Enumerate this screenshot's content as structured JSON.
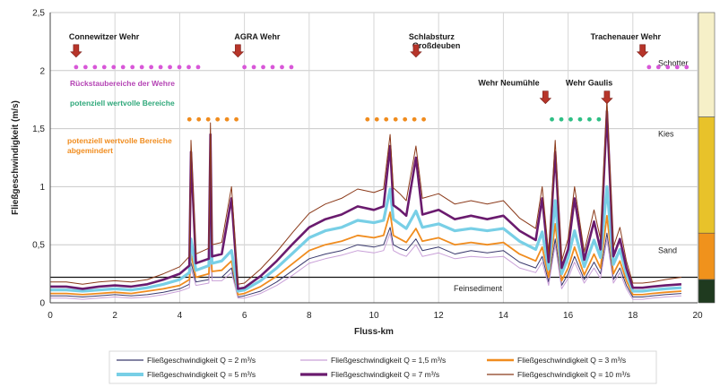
{
  "chart_data": {
    "type": "line",
    "xlabel": "Fluss-km",
    "ylabel": "Fließgeschwindigkeit (m/s)",
    "xlim": [
      0,
      20
    ],
    "ylim": [
      0,
      2.5
    ],
    "x_ticks": [
      "0",
      "2",
      "4",
      "6",
      "8",
      "10",
      "12",
      "14",
      "16",
      "18",
      "20"
    ],
    "y_ticks": [
      "0",
      "0,5",
      "1",
      "1,5",
      "2",
      "2,5"
    ],
    "x": [
      0,
      0.5,
      1,
      1.5,
      2,
      2.5,
      3,
      3.5,
      4,
      4.3,
      4.35,
      4.5,
      4.9,
      4.95,
      5.0,
      5.3,
      5.6,
      5.8,
      6.0,
      6.5,
      7,
      7.5,
      8,
      8.5,
      9,
      9.5,
      10,
      10.3,
      10.5,
      10.6,
      10.8,
      11,
      11.3,
      11.5,
      12,
      12.5,
      13,
      13.5,
      14,
      14.5,
      15,
      15.2,
      15.4,
      15.6,
      15.8,
      16,
      16.2,
      16.5,
      16.8,
      17.0,
      17.2,
      17.4,
      17.6,
      17.8,
      18,
      18.3,
      18.6,
      19,
      19.5
    ],
    "series": [
      {
        "name": "Fließgeschwindigkeit Q = 2 m³/s",
        "color": "#3b3a6e",
        "values": [
          0.06,
          0.06,
          0.05,
          0.06,
          0.07,
          0.06,
          0.07,
          0.09,
          0.12,
          0.16,
          0.35,
          0.18,
          0.2,
          0.45,
          0.22,
          0.22,
          0.3,
          0.05,
          0.06,
          0.1,
          0.18,
          0.28,
          0.38,
          0.42,
          0.45,
          0.5,
          0.48,
          0.5,
          0.65,
          0.5,
          0.47,
          0.45,
          0.55,
          0.45,
          0.48,
          0.42,
          0.45,
          0.43,
          0.45,
          0.35,
          0.3,
          0.4,
          0.18,
          0.55,
          0.15,
          0.25,
          0.4,
          0.2,
          0.35,
          0.25,
          0.6,
          0.2,
          0.3,
          0.15,
          0.05,
          0.05,
          0.06,
          0.07,
          0.08
        ]
      },
      {
        "name": "Fließgeschwindigkeit Q = 1,5 m³/s",
        "color": "#c9a0d8",
        "values": [
          0.04,
          0.04,
          0.03,
          0.04,
          0.05,
          0.04,
          0.05,
          0.07,
          0.1,
          0.13,
          0.3,
          0.15,
          0.17,
          0.4,
          0.19,
          0.19,
          0.26,
          0.04,
          0.04,
          0.08,
          0.15,
          0.24,
          0.34,
          0.38,
          0.41,
          0.45,
          0.43,
          0.45,
          0.6,
          0.45,
          0.42,
          0.4,
          0.5,
          0.4,
          0.43,
          0.38,
          0.4,
          0.39,
          0.4,
          0.3,
          0.26,
          0.35,
          0.15,
          0.5,
          0.12,
          0.21,
          0.35,
          0.17,
          0.3,
          0.21,
          0.55,
          0.17,
          0.26,
          0.12,
          0.03,
          0.03,
          0.04,
          0.05,
          0.06
        ]
      },
      {
        "name": "Fließgeschwindigkeit Q = 3 m³/s",
        "color": "#f08c1e",
        "values": [
          0.08,
          0.08,
          0.07,
          0.08,
          0.09,
          0.08,
          0.1,
          0.12,
          0.15,
          0.2,
          0.42,
          0.22,
          0.25,
          0.55,
          0.27,
          0.28,
          0.36,
          0.07,
          0.08,
          0.14,
          0.23,
          0.34,
          0.45,
          0.5,
          0.53,
          0.58,
          0.56,
          0.58,
          0.78,
          0.58,
          0.55,
          0.52,
          0.64,
          0.53,
          0.56,
          0.5,
          0.52,
          0.5,
          0.52,
          0.42,
          0.36,
          0.48,
          0.22,
          0.68,
          0.19,
          0.3,
          0.48,
          0.24,
          0.42,
          0.3,
          0.75,
          0.25,
          0.36,
          0.19,
          0.07,
          0.07,
          0.08,
          0.09,
          0.1
        ]
      },
      {
        "name": "Fließgeschwindigkeit Q = 5 m³/s",
        "color": "#78cfe6",
        "values": [
          0.11,
          0.11,
          0.1,
          0.11,
          0.12,
          0.11,
          0.13,
          0.16,
          0.2,
          0.26,
          0.55,
          0.28,
          0.32,
          0.7,
          0.34,
          0.36,
          0.45,
          0.1,
          0.11,
          0.19,
          0.3,
          0.43,
          0.56,
          0.62,
          0.65,
          0.71,
          0.69,
          0.71,
          0.98,
          0.72,
          0.68,
          0.64,
          0.79,
          0.65,
          0.68,
          0.62,
          0.64,
          0.62,
          0.64,
          0.53,
          0.46,
          0.61,
          0.29,
          0.88,
          0.25,
          0.39,
          0.62,
          0.31,
          0.54,
          0.39,
          1.0,
          0.33,
          0.46,
          0.25,
          0.1,
          0.1,
          0.11,
          0.12,
          0.13
        ]
      },
      {
        "name": "Fließgeschwindigkeit Q = 7 m³/s",
        "color": "#6a1b6e",
        "values": [
          0.14,
          0.14,
          0.12,
          0.14,
          0.15,
          0.14,
          0.16,
          0.2,
          0.25,
          0.32,
          1.3,
          0.34,
          0.38,
          1.45,
          0.4,
          0.42,
          0.9,
          0.12,
          0.13,
          0.23,
          0.36,
          0.51,
          0.65,
          0.72,
          0.76,
          0.83,
          0.8,
          0.83,
          1.35,
          0.84,
          0.8,
          0.75,
          1.25,
          0.76,
          0.8,
          0.72,
          0.75,
          0.72,
          0.75,
          0.62,
          0.54,
          0.9,
          0.35,
          1.3,
          0.3,
          0.46,
          0.9,
          0.37,
          0.7,
          0.46,
          1.65,
          0.4,
          0.55,
          0.3,
          0.13,
          0.13,
          0.14,
          0.15,
          0.16
        ]
      },
      {
        "name": "Fließgeschwindigkeit Q = 10 m³/s",
        "color": "#8b3a1a",
        "values": [
          0.18,
          0.18,
          0.16,
          0.18,
          0.19,
          0.18,
          0.2,
          0.25,
          0.31,
          0.4,
          1.4,
          0.42,
          0.47,
          1.55,
          0.5,
          0.52,
          1.0,
          0.16,
          0.17,
          0.29,
          0.44,
          0.61,
          0.77,
          0.85,
          0.9,
          0.98,
          0.95,
          0.98,
          1.45,
          0.99,
          0.94,
          0.88,
          1.35,
          0.9,
          0.94,
          0.85,
          0.88,
          0.85,
          0.88,
          0.73,
          0.64,
          1.0,
          0.42,
          1.4,
          0.36,
          0.55,
          1.0,
          0.44,
          0.8,
          0.55,
          1.75,
          0.48,
          0.65,
          0.36,
          0.17,
          0.17,
          0.18,
          0.2,
          0.22
        ]
      }
    ],
    "threshold": {
      "value": 0.22,
      "label": "Feinsediment"
    },
    "weirs": [
      {
        "label": "Connewitzer Wehr",
        "km": 0.8,
        "label_y": 2.27
      },
      {
        "label": "AGRA Wehr",
        "km": 5.8,
        "label_y": 2.27
      },
      {
        "label": "Schlabsturz",
        "label2": "Großdeuben",
        "km": 11.3,
        "label_y": 2.27
      },
      {
        "label": "Trachenauer Wehr",
        "km": 18.3,
        "label_y": 2.27
      },
      {
        "label": "Wehr Neumühle",
        "km": 15.3,
        "label_y": 1.87
      },
      {
        "label": "Wehr Gaulis",
        "km": 17.2,
        "label_y": 1.87
      }
    ],
    "annotations": [
      {
        "text": "Rückstaubereiche der Wehre",
        "color": "#b545b5"
      },
      {
        "text": "potenziell wertvolle Bereiche",
        "color": "#2fa87a"
      },
      {
        "text": "potenziell wertvolle Bereiche",
        "text2": "abgemindert",
        "color": "#f08c1e"
      }
    ],
    "dot_rows": [
      {
        "color": "#d857d8",
        "y": 2.03,
        "segments": [
          [
            0.8,
            4.8
          ],
          [
            6.0,
            7.6
          ],
          [
            18.5,
            19.8
          ]
        ]
      },
      {
        "color": "#f08c1e",
        "y": 1.58,
        "segments": [
          [
            4.3,
            6.0
          ],
          [
            9.8,
            11.6
          ]
        ]
      },
      {
        "color": "#2fbf85",
        "y": 1.58,
        "segments": [
          [
            15.5,
            17.0
          ]
        ]
      }
    ],
    "zones": [
      {
        "label": "Schotter",
        "color": "#f6f0c8",
        "from": 1.6,
        "to": 2.5
      },
      {
        "label": "Kies",
        "color": "#e8c22a",
        "from": 0.6,
        "to": 1.6
      },
      {
        "label": "Sand",
        "color": "#f0921c",
        "from": 0.2,
        "to": 0.6
      },
      {
        "label": "",
        "color": "#1f3a1f",
        "from": 0,
        "to": 0.2
      }
    ],
    "grid": true,
    "legend_position": "bottom"
  }
}
